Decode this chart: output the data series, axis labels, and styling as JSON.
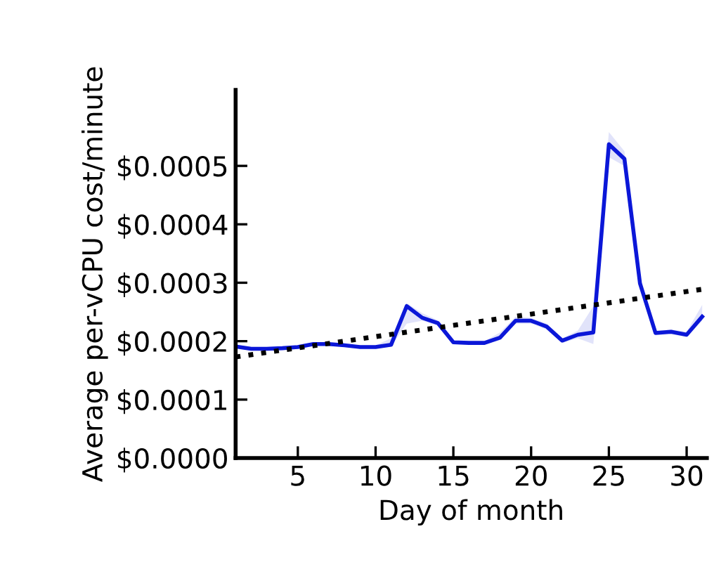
{
  "chart_data": {
    "type": "line",
    "xlabel": "Day of month",
    "ylabel": "Average per-vCPU cost/minute",
    "xlim": [
      1,
      31.3
    ],
    "xticks": [
      5,
      10,
      15,
      20,
      25,
      30
    ],
    "ylim": [
      0,
      0.00063
    ],
    "yticks": [
      {
        "value": 0,
        "label": "$0.0000"
      },
      {
        "value": 0.0001,
        "label": "$0.0001"
      },
      {
        "value": 0.0002,
        "label": "$0.0002"
      },
      {
        "value": 0.0003,
        "label": "$0.0003"
      },
      {
        "value": 0.0004,
        "label": "$0.0004"
      },
      {
        "value": 0.0005,
        "label": "$0.0005"
      }
    ],
    "grid": false,
    "legend": false,
    "series": [
      {
        "color": "#0b17d8",
        "line_style": "solid",
        "x": [
          1,
          2,
          3,
          4,
          5,
          6,
          7,
          8,
          9,
          10,
          11,
          12,
          13,
          14,
          15,
          16,
          17,
          18,
          19,
          20,
          21,
          22,
          23,
          24,
          25,
          26,
          27,
          28,
          29,
          30,
          31
        ],
        "values": [
          0.000191,
          0.000187,
          0.000187,
          0.000188,
          0.00019,
          0.000195,
          0.000195,
          0.000193,
          0.00019,
          0.00019,
          0.000194,
          0.00026,
          0.00024,
          0.000231,
          0.000198,
          0.000197,
          0.000197,
          0.000206,
          0.000235,
          0.000235,
          0.000225,
          0.000201,
          0.000211,
          0.000215,
          0.000537,
          0.000512,
          0.000299,
          0.000214,
          0.000216,
          0.000211,
          0.000242
        ],
        "lower": [
          0.000188,
          0.000184,
          0.000184,
          0.000185,
          0.000187,
          0.000192,
          0.000192,
          0.00019,
          0.000187,
          0.000187,
          0.000191,
          0.00023,
          0.000235,
          0.000226,
          0.000195,
          0.000194,
          0.000194,
          0.000202,
          0.00023,
          0.00023,
          0.00022,
          0.000197,
          0.000205,
          0.000195,
          0.000515,
          0.0005,
          0.000295,
          0.00021,
          0.000212,
          0.000207,
          0.000235
        ],
        "upper": [
          0.000194,
          0.00019,
          0.00019,
          0.000191,
          0.000193,
          0.000198,
          0.000198,
          0.000196,
          0.000193,
          0.000193,
          0.000205,
          0.000265,
          0.000248,
          0.000236,
          0.000201,
          0.0002,
          0.0002,
          0.000215,
          0.000242,
          0.00024,
          0.00023,
          0.000205,
          0.000218,
          0.00026,
          0.000558,
          0.000525,
          0.000305,
          0.000218,
          0.00022,
          0.000216,
          0.000262
        ]
      },
      {
        "color": "#000000",
        "line_style": "dotted",
        "x": [
          1,
          31.3
        ],
        "values": [
          0.000173,
          0.00029
        ]
      }
    ]
  }
}
